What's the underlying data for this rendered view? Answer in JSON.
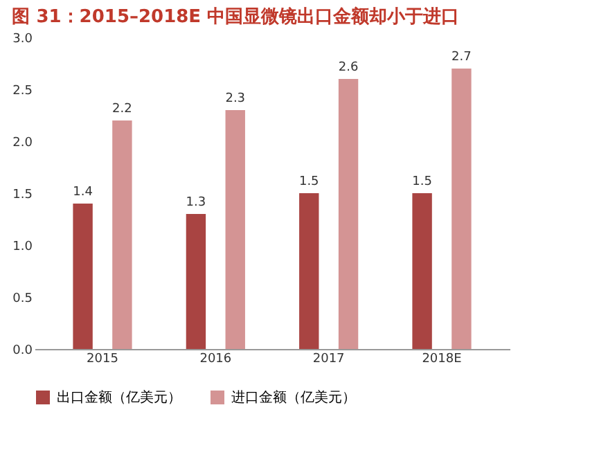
{
  "chart_data": {
    "type": "bar",
    "title": "图 31：2015–2018E 中国显微镜出口金额却小于进口",
    "categories": [
      "2015",
      "2016",
      "2017",
      "2018E"
    ],
    "series": [
      {
        "name": "出口金额（亿美元）",
        "color": "#a94442",
        "values": [
          1.4,
          1.3,
          1.5,
          1.5
        ]
      },
      {
        "name": "进口金额（亿美元）",
        "color": "#d49494",
        "values": [
          2.2,
          2.3,
          2.6,
          2.7
        ]
      }
    ],
    "ylim": [
      0,
      3
    ],
    "yticks": [
      {
        "value": 0,
        "label": "0.0"
      },
      {
        "value": 0.5,
        "label": "0.5"
      },
      {
        "value": 1,
        "label": "1.0"
      },
      {
        "value": 1.5,
        "label": "1.5"
      },
      {
        "value": 2,
        "label": "2.0"
      },
      {
        "value": 2.5,
        "label": "2.5"
      },
      {
        "value": 3,
        "label": "3.0"
      }
    ],
    "data_labels": true,
    "grid": false,
    "legend": "bottom"
  }
}
